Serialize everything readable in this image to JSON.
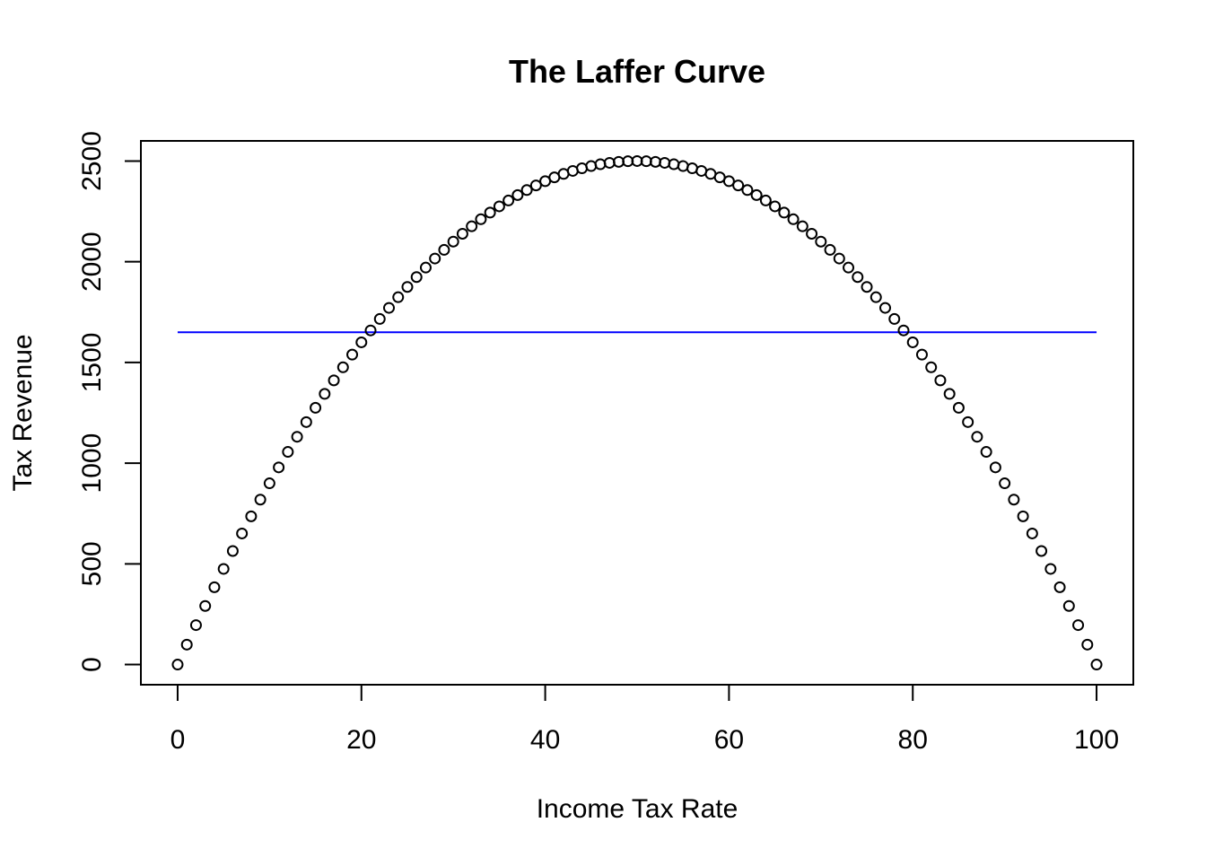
{
  "chart_data": {
    "type": "scatter",
    "title": "The Laffer Curve",
    "xlabel": "Income Tax Rate",
    "ylabel": "Tax Revenue",
    "xlim": [
      -4,
      104
    ],
    "ylim": [
      -100,
      2600
    ],
    "x_ticks": [
      0,
      20,
      40,
      60,
      80,
      100
    ],
    "y_ticks": [
      0,
      500,
      1000,
      1500,
      2000,
      2500
    ],
    "x_tick_labels": [
      "0",
      "20",
      "40",
      "60",
      "80",
      "100"
    ],
    "y_tick_labels": [
      "0",
      "500",
      "1000",
      "1500",
      "2000",
      "2500"
    ],
    "series": [
      {
        "marker": "open-circle",
        "color": "#000000",
        "x": [
          0,
          1,
          2,
          3,
          4,
          5,
          6,
          7,
          8,
          9,
          10,
          11,
          12,
          13,
          14,
          15,
          16,
          17,
          18,
          19,
          20,
          21,
          22,
          23,
          24,
          25,
          26,
          27,
          28,
          29,
          30,
          31,
          32,
          33,
          34,
          35,
          36,
          37,
          38,
          39,
          40,
          41,
          42,
          43,
          44,
          45,
          46,
          47,
          48,
          49,
          50,
          51,
          52,
          53,
          54,
          55,
          56,
          57,
          58,
          59,
          60,
          61,
          62,
          63,
          64,
          65,
          66,
          67,
          68,
          69,
          70,
          71,
          72,
          73,
          74,
          75,
          76,
          77,
          78,
          79,
          80,
          81,
          82,
          83,
          84,
          85,
          86,
          87,
          88,
          89,
          90,
          91,
          92,
          93,
          94,
          95,
          96,
          97,
          98,
          99,
          100
        ],
        "y": [
          0,
          99,
          196,
          291,
          384,
          475,
          564,
          651,
          736,
          819,
          900,
          979,
          1056,
          1131,
          1204,
          1275,
          1344,
          1411,
          1476,
          1539,
          1600,
          1659,
          1716,
          1771,
          1824,
          1875,
          1924,
          1971,
          2016,
          2059,
          2100,
          2139,
          2176,
          2211,
          2244,
          2275,
          2304,
          2331,
          2356,
          2379,
          2400,
          2419,
          2436,
          2451,
          2464,
          2475,
          2484,
          2491,
          2496,
          2499,
          2500,
          2499,
          2496,
          2491,
          2484,
          2475,
          2464,
          2451,
          2436,
          2419,
          2400,
          2379,
          2356,
          2331,
          2304,
          2275,
          2244,
          2211,
          2176,
          2139,
          2100,
          2059,
          2016,
          1971,
          1924,
          1875,
          1824,
          1771,
          1716,
          1659,
          1600,
          1539,
          1476,
          1411,
          1344,
          1275,
          1204,
          1131,
          1056,
          979,
          900,
          819,
          736,
          651,
          564,
          475,
          384,
          291,
          196,
          99,
          0
        ]
      }
    ],
    "reference_lines": [
      {
        "type": "horizontal",
        "y": 1650,
        "x_from": 0,
        "x_to": 100,
        "color": "#0000ff"
      }
    ],
    "grid": false,
    "legend": "none"
  }
}
